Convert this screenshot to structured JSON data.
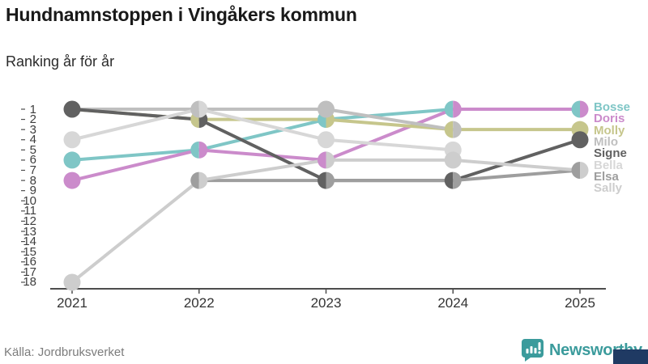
{
  "header": {
    "title": "Hundnamnstoppen i Vingåkers kommun",
    "subtitle": "Ranking år för år"
  },
  "footer": {
    "source": "Källa: Jordbruksverket",
    "brand": "Newsworthy"
  },
  "colors": {
    "axis": "#4d4d4d",
    "tick_label": "#3d3d3d",
    "brand_teal": "#3b9b9c",
    "corner_navy": "#1f3a63"
  },
  "chart_data": {
    "type": "line",
    "variant": "bump-ranking",
    "title": "Hundnamnstoppen i Vingåkers kommun",
    "subtitle": "Ranking år för år",
    "categories": [
      "2021",
      "2022",
      "2023",
      "2024",
      "2025"
    ],
    "series": [
      {
        "name": "Bosse",
        "color": "#7fc6c6",
        "ranks": [
          6,
          5,
          2,
          1,
          1
        ]
      },
      {
        "name": "Doris",
        "color": "#cb8bcb",
        "ranks": [
          8,
          5,
          6,
          1,
          1
        ]
      },
      {
        "name": "Molly",
        "color": "#c6c68c",
        "ranks": [
          1,
          2,
          2,
          3,
          3
        ]
      },
      {
        "name": "Milo",
        "color": "#bfbfbf",
        "ranks": [
          1,
          1,
          1,
          3,
          null
        ]
      },
      {
        "name": "Signe",
        "color": "#616161",
        "ranks": [
          1,
          2,
          8,
          8,
          4
        ]
      },
      {
        "name": "Bella",
        "color": "#d7d7d7",
        "ranks": [
          4,
          1,
          4,
          5,
          null
        ]
      },
      {
        "name": "Elsa",
        "color": "#9e9e9e",
        "ranks": [
          null,
          8,
          8,
          8,
          7
        ]
      },
      {
        "name": "Sally",
        "color": "#cdcdcd",
        "ranks": [
          18,
          8,
          6,
          6,
          7
        ]
      }
    ],
    "y_axis": {
      "min": 1,
      "max": 18,
      "inverted": true,
      "label_every": 1
    },
    "grid": false,
    "legend_position": "right",
    "notes": "Ties shown as split (half/half) dots"
  }
}
